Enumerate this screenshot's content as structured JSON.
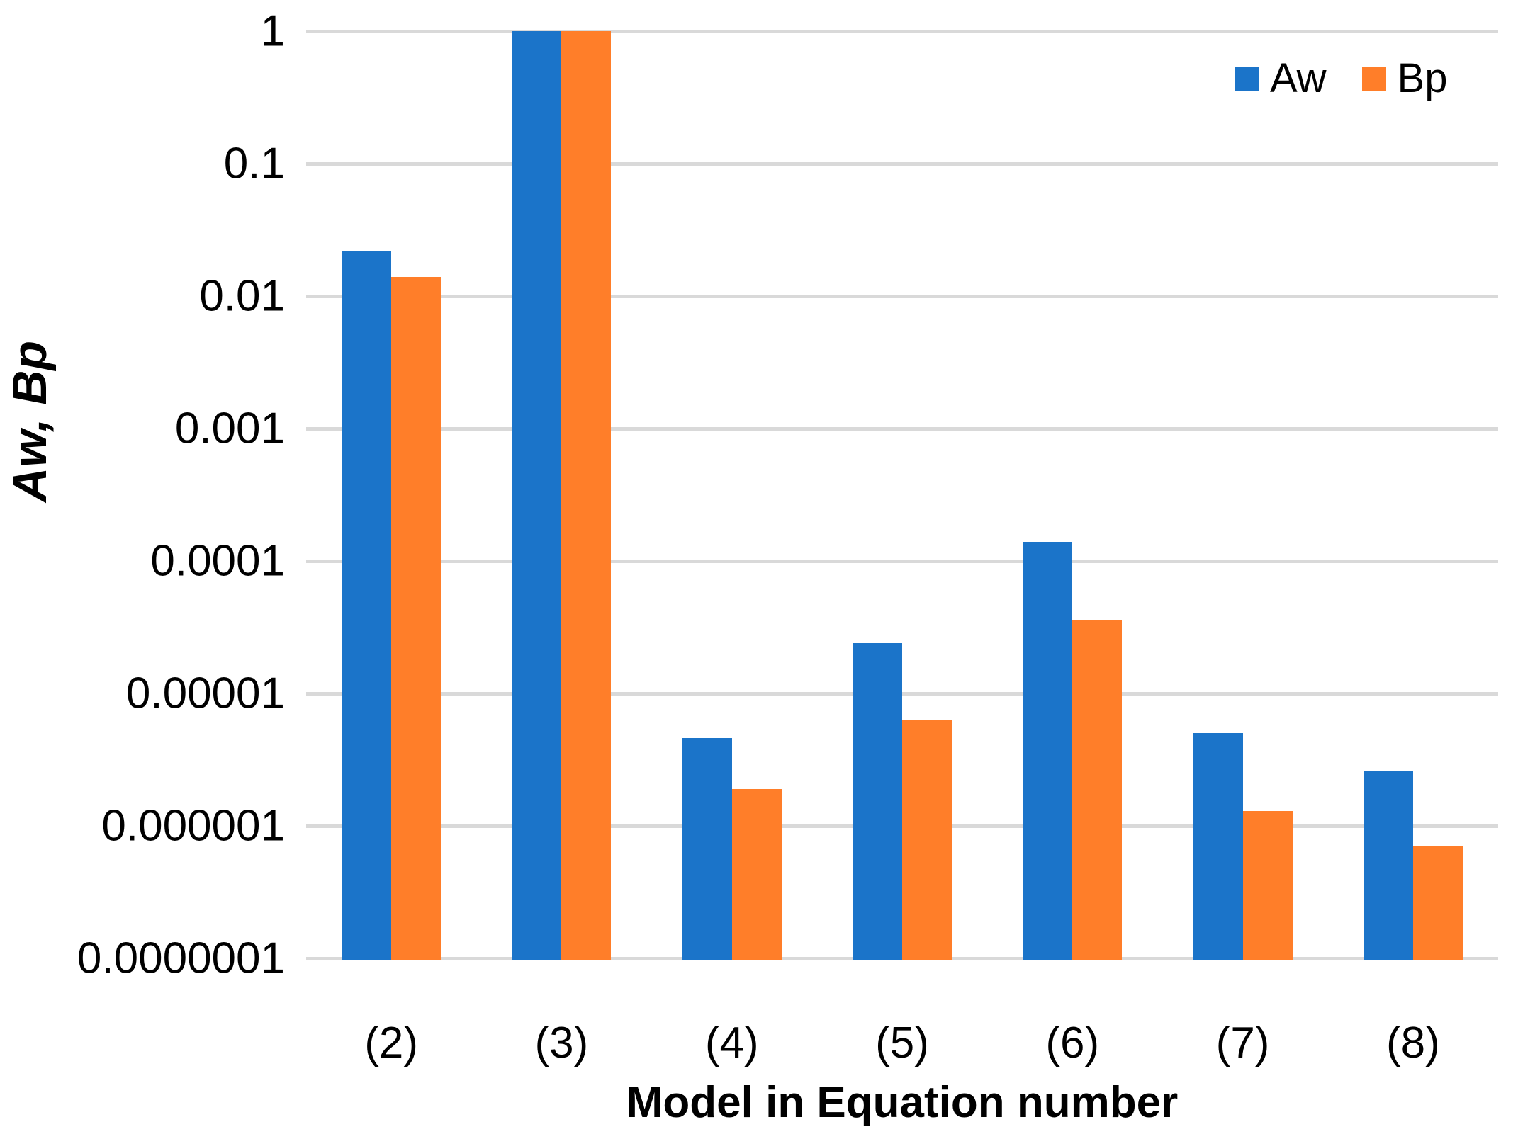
{
  "chart_data": {
    "type": "bar",
    "title": "",
    "xlabel": "Model in Equation number",
    "ylabel": "Aw, Bp",
    "yscale": "log",
    "ylim": [
      1e-07,
      1
    ],
    "grid": true,
    "legend_position": "top-right",
    "categories": [
      "(2)",
      "(3)",
      "(4)",
      "(5)",
      "(6)",
      "(7)",
      "(8)"
    ],
    "ytick_labels": [
      "1",
      "0.1",
      "0.01",
      "0.001",
      "0.0001",
      "0.00001",
      "0.000001",
      "0.0000001"
    ],
    "series": [
      {
        "name": "Aw",
        "color": "#1b74c9",
        "values": [
          0.022,
          1,
          4.6e-06,
          2.4e-05,
          0.00014,
          5e-06,
          2.6e-06
        ]
      },
      {
        "name": "Bp",
        "color": "#ff7e29",
        "values": [
          0.014,
          1,
          1.9e-06,
          6.3e-06,
          3.6e-05,
          1.3e-06,
          7e-07
        ]
      }
    ],
    "gridline_color": "#d9d9d9",
    "text_color": "#000000"
  }
}
